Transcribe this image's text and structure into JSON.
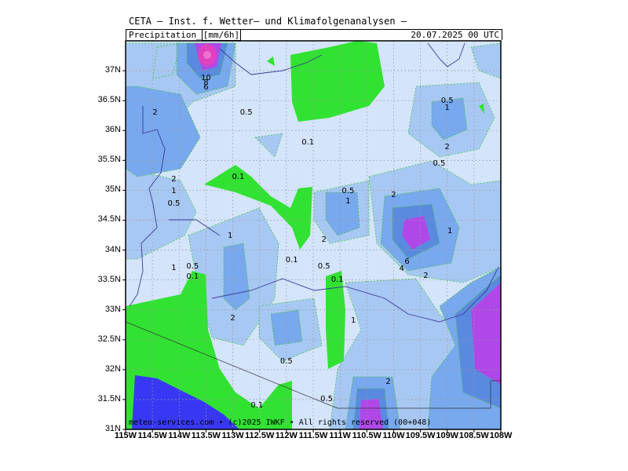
{
  "header": {
    "title": "CETA — Inst. f. Wetter— und Klimafolgenanalysen —",
    "variable": "Precipitation",
    "unit": "mm/6h",
    "valid_time": "20.07.2025 00 UTC"
  },
  "footer": {
    "credit": "meteo-services.com • (c)2025 IWKF • All rights reserved (00+048)"
  },
  "axes": {
    "lat_labels": [
      "37N",
      "36.5N",
      "36N",
      "35.5N",
      "35N",
      "34.5N",
      "34N",
      "33.5N",
      "33N",
      "32.5N",
      "32N",
      "31.5N",
      "31N"
    ],
    "lon_labels": [
      "115W",
      "114.5W",
      "114W",
      "113.5W",
      "113W",
      "112.5W",
      "112W",
      "111.5W",
      "111W",
      "110.5W",
      "110W",
      "109.5W",
      "109W",
      "108.5W",
      "108W"
    ],
    "lat_range": [
      31,
      37.5
    ],
    "lon_range": [
      -115,
      -108
    ]
  },
  "colors": {
    "c_0_1": "#32e232",
    "c_0_5": "#d4e4fa",
    "c_1": "#a8c8f4",
    "c_2": "#78a8ee",
    "c_4": "#5a8ae0",
    "c_6": "#b048e8",
    "c_10": "#e040c0",
    "water": "#3838f4"
  },
  "contour_labels": [
    {
      "text": "10",
      "lon": -113.5,
      "lat": 36.87
    },
    {
      "text": "8",
      "lon": -113.5,
      "lat": 36.8
    },
    {
      "text": "6",
      "lon": -113.5,
      "lat": 36.72
    },
    {
      "text": "2",
      "lon": -114.45,
      "lat": 36.3
    },
    {
      "text": "0.5",
      "lon": -112.75,
      "lat": 36.3
    },
    {
      "text": "0.1",
      "lon": -111.6,
      "lat": 35.8
    },
    {
      "text": "0.5",
      "lon": -109.0,
      "lat": 36.5
    },
    {
      "text": "1",
      "lon": -109.0,
      "lat": 36.38
    },
    {
      "text": "2",
      "lon": -109.0,
      "lat": 35.72
    },
    {
      "text": "0.5",
      "lon": -109.15,
      "lat": 35.45
    },
    {
      "text": "0.1",
      "lon": -112.9,
      "lat": 35.22
    },
    {
      "text": "2",
      "lon": -114.1,
      "lat": 35.18
    },
    {
      "text": "1",
      "lon": -114.1,
      "lat": 34.98
    },
    {
      "text": "0.5",
      "lon": -114.1,
      "lat": 34.78
    },
    {
      "text": "0.5",
      "lon": -110.85,
      "lat": 34.98
    },
    {
      "text": "1",
      "lon": -110.85,
      "lat": 34.82
    },
    {
      "text": "2",
      "lon": -110.0,
      "lat": 34.92
    },
    {
      "text": "1",
      "lon": -108.95,
      "lat": 34.32
    },
    {
      "text": "1",
      "lon": -113.05,
      "lat": 34.24
    },
    {
      "text": "2",
      "lon": -111.3,
      "lat": 34.17
    },
    {
      "text": "0.1",
      "lon": -111.9,
      "lat": 33.83
    },
    {
      "text": "1",
      "lon": -114.1,
      "lat": 33.7
    },
    {
      "text": "0.5",
      "lon": -113.75,
      "lat": 33.72
    },
    {
      "text": "0.1",
      "lon": -113.75,
      "lat": 33.55
    },
    {
      "text": "0.5",
      "lon": -111.3,
      "lat": 33.73
    },
    {
      "text": "0.1",
      "lon": -111.05,
      "lat": 33.5
    },
    {
      "text": "6",
      "lon": -109.75,
      "lat": 33.8
    },
    {
      "text": "4",
      "lon": -109.85,
      "lat": 33.68
    },
    {
      "text": "2",
      "lon": -109.4,
      "lat": 33.57
    },
    {
      "text": "2",
      "lon": -113.0,
      "lat": 32.86
    },
    {
      "text": "1",
      "lon": -110.75,
      "lat": 32.82
    },
    {
      "text": "0.5",
      "lon": -112.0,
      "lat": 32.13
    },
    {
      "text": "2",
      "lon": -110.1,
      "lat": 31.8
    },
    {
      "text": "0.5",
      "lon": -111.25,
      "lat": 31.5
    },
    {
      "text": "0.1",
      "lon": -112.55,
      "lat": 31.4
    }
  ]
}
